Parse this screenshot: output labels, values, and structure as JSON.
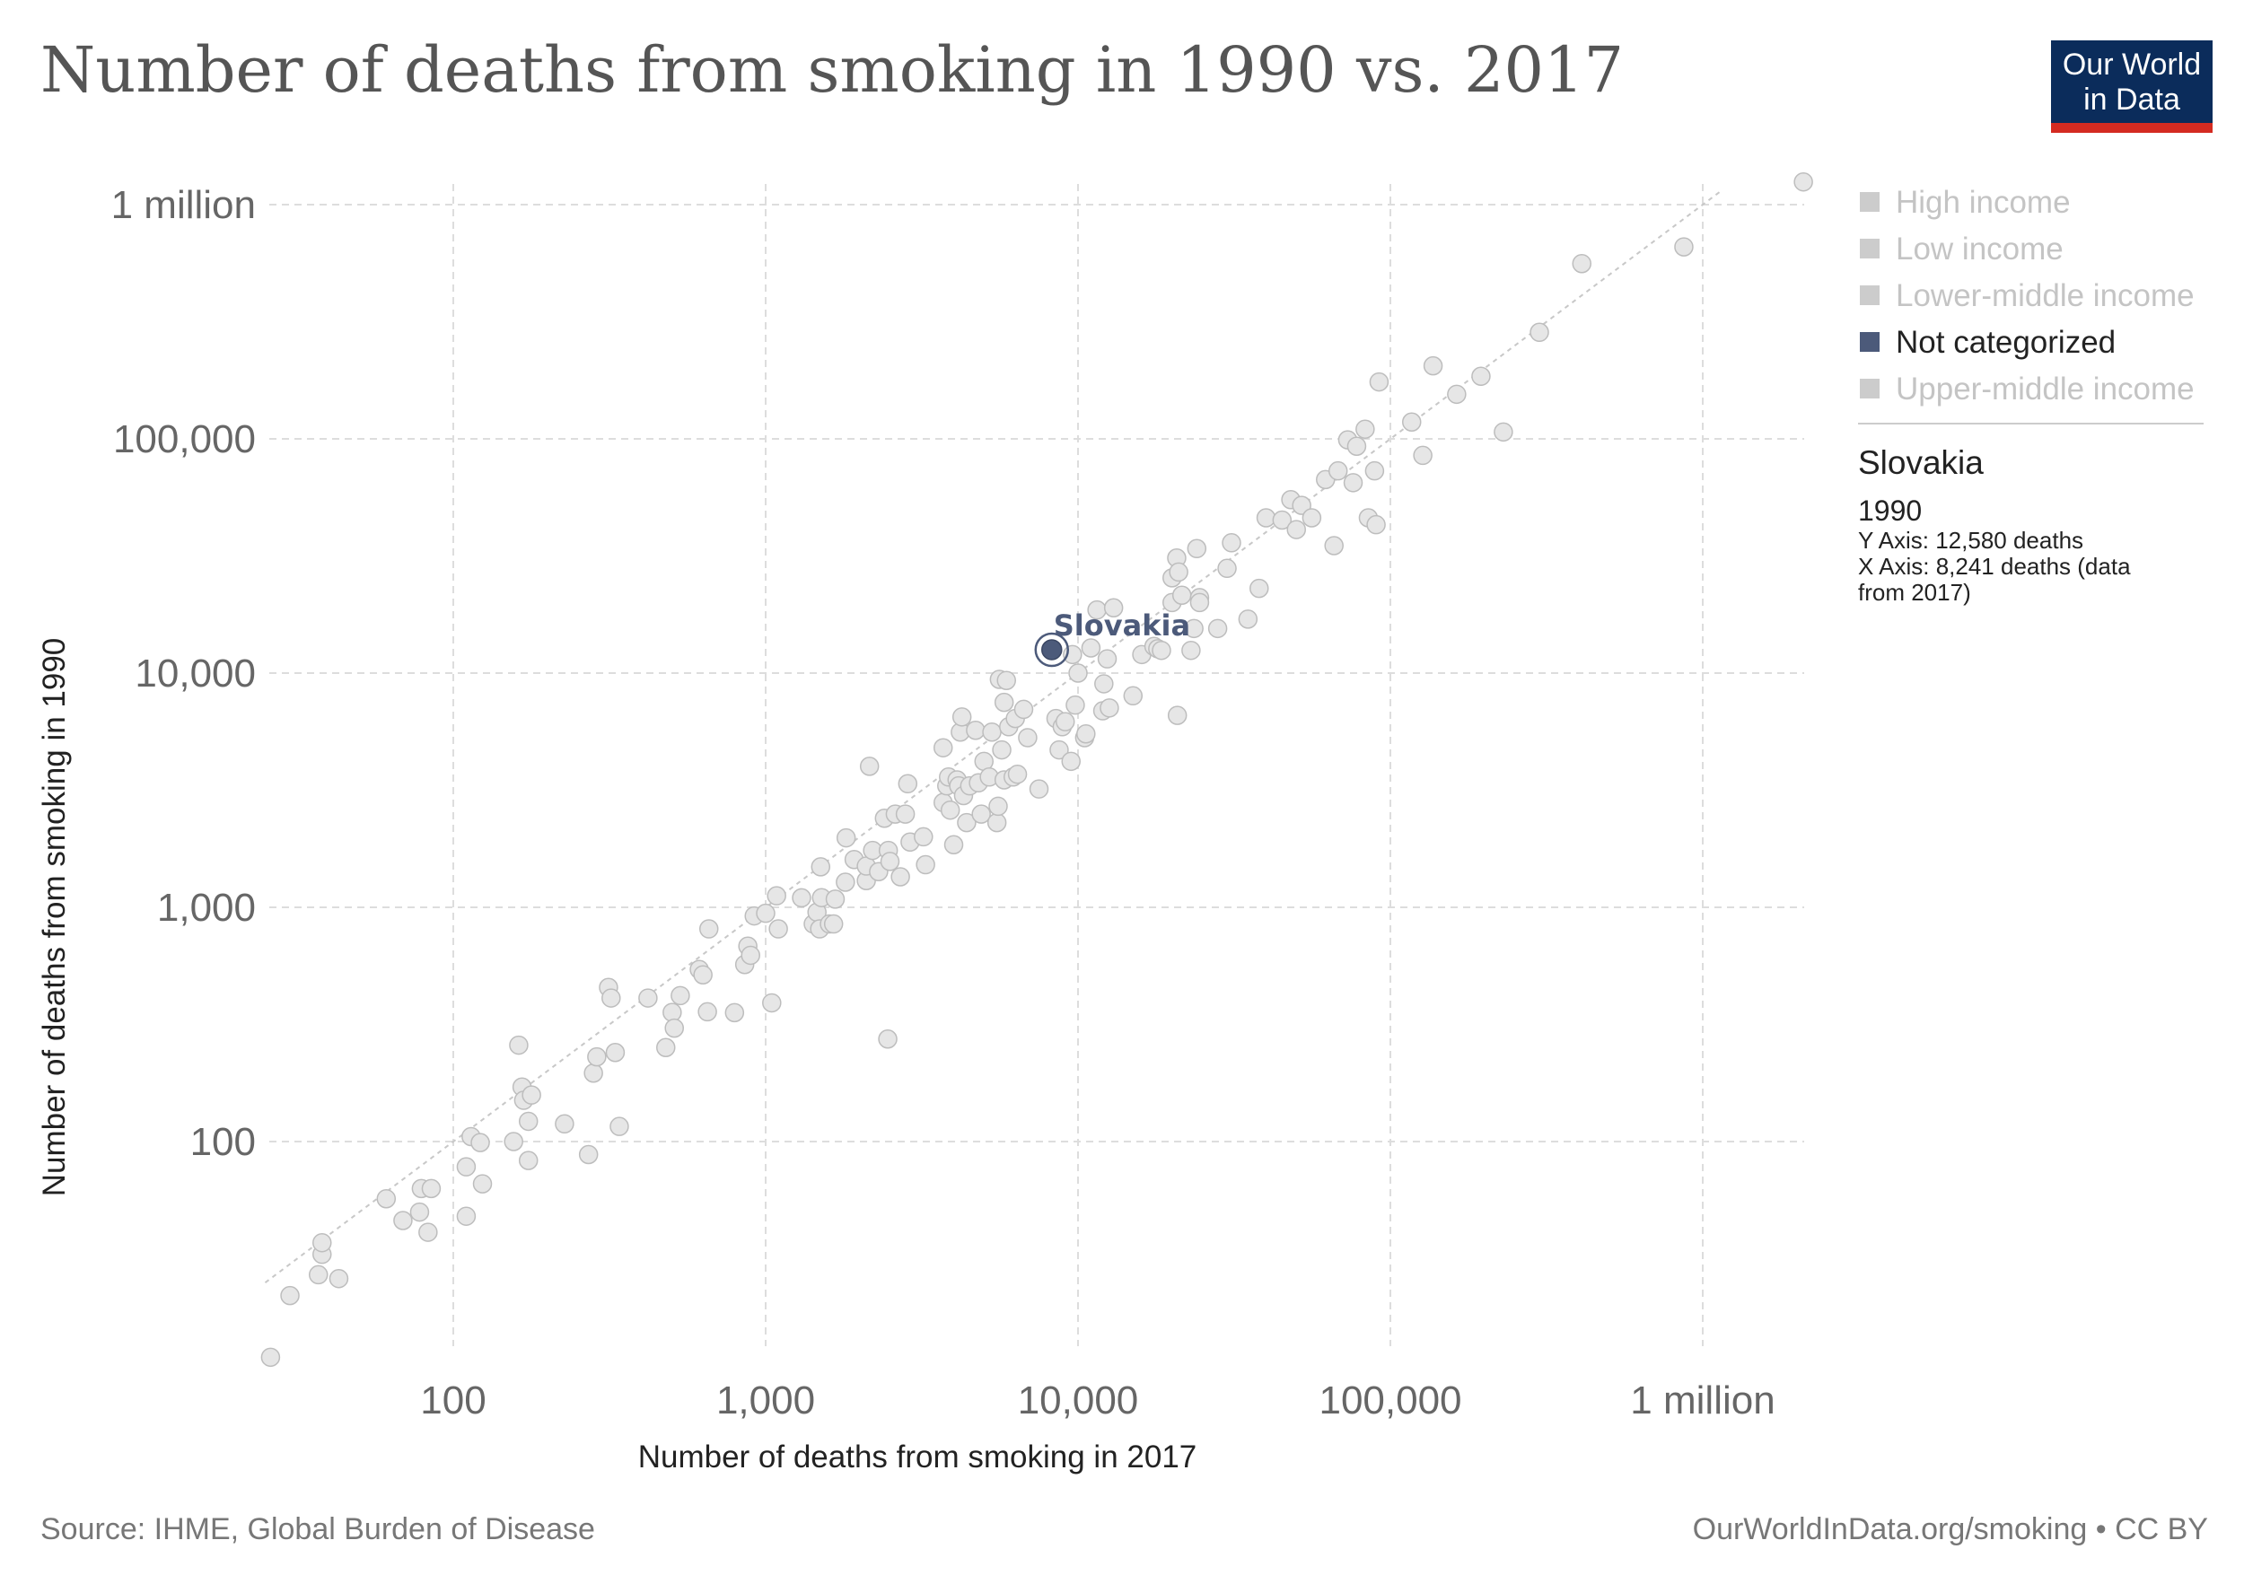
{
  "header": {
    "title": "Number of deaths from smoking in 1990 vs. 2017",
    "logo_line1": "Our World",
    "logo_line2": "in Data"
  },
  "footer": {
    "source": "Source: IHME, Global Burden of Disease",
    "link": "OurWorldInData.org/smoking • CC BY"
  },
  "legend": {
    "items": [
      {
        "label": "High income",
        "color": "#cccccc",
        "active": false
      },
      {
        "label": "Low income",
        "color": "#cccccc",
        "active": false
      },
      {
        "label": "Lower-middle income",
        "color": "#cccccc",
        "active": false
      },
      {
        "label": "Not categorized",
        "color": "#4c5a7a",
        "active": true
      },
      {
        "label": "Upper-middle income",
        "color": "#cccccc",
        "active": false
      }
    ]
  },
  "tooltip": {
    "entity": "Slovakia",
    "year": "1990",
    "y_line": "Y Axis: 12,580 deaths",
    "x_line1": "X Axis: 8,241 deaths (data",
    "x_line2": "from 2017)"
  },
  "chart_data": {
    "type": "scatter",
    "title": "Number of deaths from smoking in 1990 vs. 2017",
    "xlabel": "Number of deaths from smoking in 2017",
    "ylabel": "Number of deaths from smoking in 1990",
    "xscale": "log",
    "yscale": "log",
    "xlim": [
      25,
      2300000
    ],
    "ylim": [
      11,
      1300000
    ],
    "x_ticks": [
      {
        "value": 100,
        "label": "100"
      },
      {
        "value": 1000,
        "label": "1,000"
      },
      {
        "value": 10000,
        "label": "10,000"
      },
      {
        "value": 100000,
        "label": "100,000"
      },
      {
        "value": 1000000,
        "label": "1 million"
      }
    ],
    "y_ticks": [
      {
        "value": 100,
        "label": "100"
      },
      {
        "value": 1000,
        "label": "1,000"
      },
      {
        "value": 10000,
        "label": "10,000"
      },
      {
        "value": 100000,
        "label": "100,000"
      },
      {
        "value": 1000000,
        "label": "1 million"
      }
    ],
    "grid": true,
    "reference_line": "y = x",
    "legend_position": "right",
    "highlight": {
      "name": "Slovakia",
      "x": 8241,
      "y": 12580,
      "category": "Not categorized"
    },
    "points": [
      [
        26,
        12
      ],
      [
        30,
        22
      ],
      [
        37,
        27
      ],
      [
        38,
        33
      ],
      [
        38,
        37
      ],
      [
        43,
        26
      ],
      [
        61,
        57
      ],
      [
        69,
        46
      ],
      [
        78,
        50
      ],
      [
        79,
        63
      ],
      [
        83,
        41
      ],
      [
        85,
        63
      ],
      [
        110,
        48
      ],
      [
        110,
        78
      ],
      [
        114,
        105
      ],
      [
        122,
        99
      ],
      [
        124,
        66
      ],
      [
        156,
        100
      ],
      [
        162,
        258
      ],
      [
        166,
        171
      ],
      [
        168,
        150
      ],
      [
        174,
        83
      ],
      [
        174,
        122
      ],
      [
        178,
        158
      ],
      [
        227,
        119
      ],
      [
        271,
        88
      ],
      [
        281,
        196
      ],
      [
        288,
        230
      ],
      [
        314,
        455
      ],
      [
        320,
        410
      ],
      [
        330,
        240
      ],
      [
        340,
        116
      ],
      [
        420,
        410
      ],
      [
        479,
        252
      ],
      [
        502,
        356
      ],
      [
        510,
        305
      ],
      [
        533,
        420
      ],
      [
        613,
        543
      ],
      [
        630,
        515
      ],
      [
        651,
        358
      ],
      [
        658,
        809
      ],
      [
        795,
        355
      ],
      [
        857,
        570
      ],
      [
        877,
        683
      ],
      [
        895,
        624
      ],
      [
        919,
        919
      ],
      [
        1000,
        943
      ],
      [
        1046,
        391
      ],
      [
        1084,
        1120
      ],
      [
        1098,
        809
      ],
      [
        1303,
        1098
      ],
      [
        1420,
        849
      ],
      [
        1460,
        953
      ],
      [
        1489,
        809
      ],
      [
        1500,
        1489
      ],
      [
        1510,
        1100
      ],
      [
        1600,
        849
      ],
      [
        1650,
        849
      ],
      [
        1670,
        1084
      ],
      [
        1800,
        1280
      ],
      [
        1810,
        1980
      ],
      [
        1920,
        1600
      ],
      [
        2100,
        1300
      ],
      [
        2100,
        1500
      ],
      [
        2150,
        4000
      ],
      [
        2200,
        1750
      ],
      [
        2300,
        1420
      ],
      [
        2400,
        2400
      ],
      [
        2460,
        274
      ],
      [
        2470,
        1750
      ],
      [
        2500,
        1570
      ],
      [
        2600,
        2500
      ],
      [
        2700,
        1350
      ],
      [
        2800,
        2500
      ],
      [
        2850,
        3370
      ],
      [
        2900,
        1900
      ],
      [
        3200,
        2000
      ],
      [
        3250,
        1520
      ],
      [
        3700,
        4800
      ],
      [
        3700,
        2800
      ],
      [
        3800,
        3300
      ],
      [
        3850,
        3600
      ],
      [
        3900,
        2600
      ],
      [
        4000,
        1850
      ],
      [
        4100,
        3500
      ],
      [
        4150,
        3300
      ],
      [
        4200,
        5600
      ],
      [
        4250,
        6500
      ],
      [
        4300,
        3000
      ],
      [
        4400,
        2300
      ],
      [
        4500,
        3300
      ],
      [
        4700,
        5700
      ],
      [
        4800,
        3400
      ],
      [
        4900,
        2500
      ],
      [
        5000,
        4200
      ],
      [
        5200,
        3600
      ],
      [
        5300,
        5600
      ],
      [
        5500,
        2300
      ],
      [
        5550,
        2700
      ],
      [
        5600,
        9400
      ],
      [
        5700,
        4700
      ],
      [
        5800,
        3500
      ],
      [
        5800,
        7500
      ],
      [
        5900,
        9300
      ],
      [
        6000,
        5900
      ],
      [
        6200,
        3600
      ],
      [
        6300,
        6400
      ],
      [
        6400,
        3700
      ],
      [
        6700,
        7000
      ],
      [
        6900,
        5300
      ],
      [
        7500,
        3200
      ],
      [
        8500,
        6400
      ],
      [
        8700,
        4700
      ],
      [
        8900,
        5900
      ],
      [
        9100,
        6200
      ],
      [
        9500,
        4200
      ],
      [
        9600,
        12000
      ],
      [
        9800,
        7300
      ],
      [
        10000,
        10000
      ],
      [
        10500,
        5300
      ],
      [
        10600,
        5500
      ],
      [
        11000,
        12800
      ],
      [
        11500,
        18600
      ],
      [
        12000,
        6900
      ],
      [
        12100,
        9000
      ],
      [
        12400,
        11500
      ],
      [
        12600,
        7100
      ],
      [
        13000,
        19000
      ],
      [
        15000,
        8000
      ],
      [
        16000,
        12000
      ],
      [
        17500,
        13000
      ],
      [
        18000,
        12700
      ],
      [
        18500,
        12500
      ],
      [
        20000,
        25500
      ],
      [
        20000,
        20000
      ],
      [
        20700,
        31000
      ],
      [
        20800,
        6600
      ],
      [
        21000,
        27000
      ],
      [
        21500,
        21500
      ],
      [
        23000,
        12500
      ],
      [
        23500,
        15500
      ],
      [
        24000,
        34000
      ],
      [
        24500,
        21000
      ],
      [
        24500,
        20000
      ],
      [
        28000,
        15500
      ],
      [
        30000,
        28000
      ],
      [
        31000,
        36000
      ],
      [
        35000,
        17000
      ],
      [
        38000,
        23000
      ],
      [
        40000,
        46000
      ],
      [
        45000,
        45000
      ],
      [
        48000,
        55000
      ],
      [
        50000,
        41000
      ],
      [
        52000,
        52000
      ],
      [
        56000,
        46000
      ],
      [
        62000,
        67000
      ],
      [
        66000,
        35000
      ],
      [
        68000,
        73000
      ],
      [
        73000,
        99000
      ],
      [
        76000,
        65000
      ],
      [
        78000,
        93000
      ],
      [
        83000,
        110000
      ],
      [
        85000,
        46000
      ],
      [
        89000,
        73000
      ],
      [
        90000,
        43000
      ],
      [
        92000,
        175000
      ],
      [
        117000,
        118000
      ],
      [
        127000,
        85000
      ],
      [
        137000,
        205000
      ],
      [
        163000,
        155000
      ],
      [
        195000,
        185000
      ],
      [
        230000,
        107000
      ],
      [
        300000,
        285000
      ],
      [
        410000,
        560000
      ],
      [
        870000,
        660000
      ],
      [
        2100000,
        1250000
      ]
    ]
  }
}
